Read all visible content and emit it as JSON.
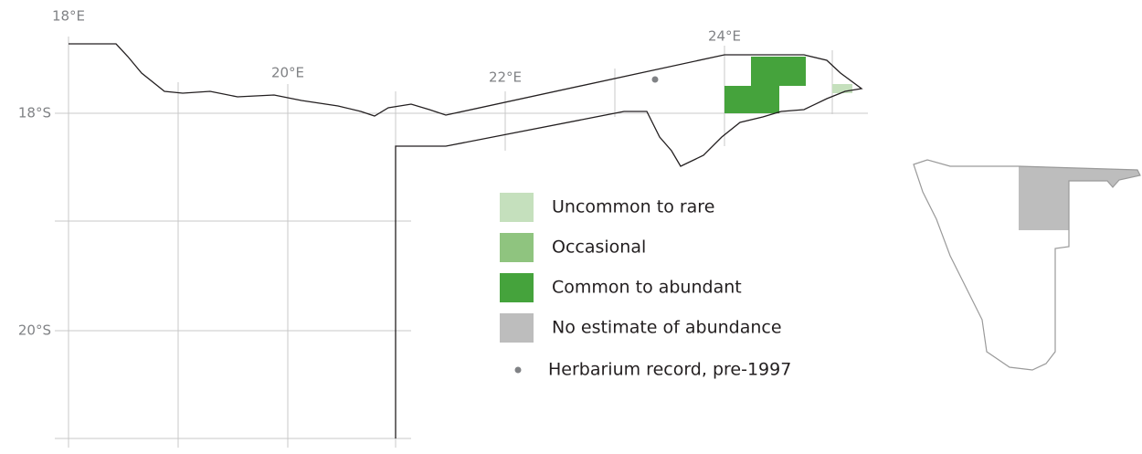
{
  "map": {
    "lon_labels": [
      "18°E",
      "20°E",
      "22°E",
      "24°E"
    ],
    "lat_labels": [
      "18°S",
      "20°S"
    ],
    "legend": [
      {
        "label": "Uncommon to rare",
        "color": "#c5e0bd"
      },
      {
        "label": "Occasional",
        "color": "#8fc47f"
      },
      {
        "label": "Common to abundant",
        "color": "#45a33c"
      },
      {
        "label": "No estimate of abundance",
        "color": "#bdbdbd"
      },
      {
        "label": "Herbarium record, pre-1997",
        "color": "#808285"
      }
    ]
  }
}
